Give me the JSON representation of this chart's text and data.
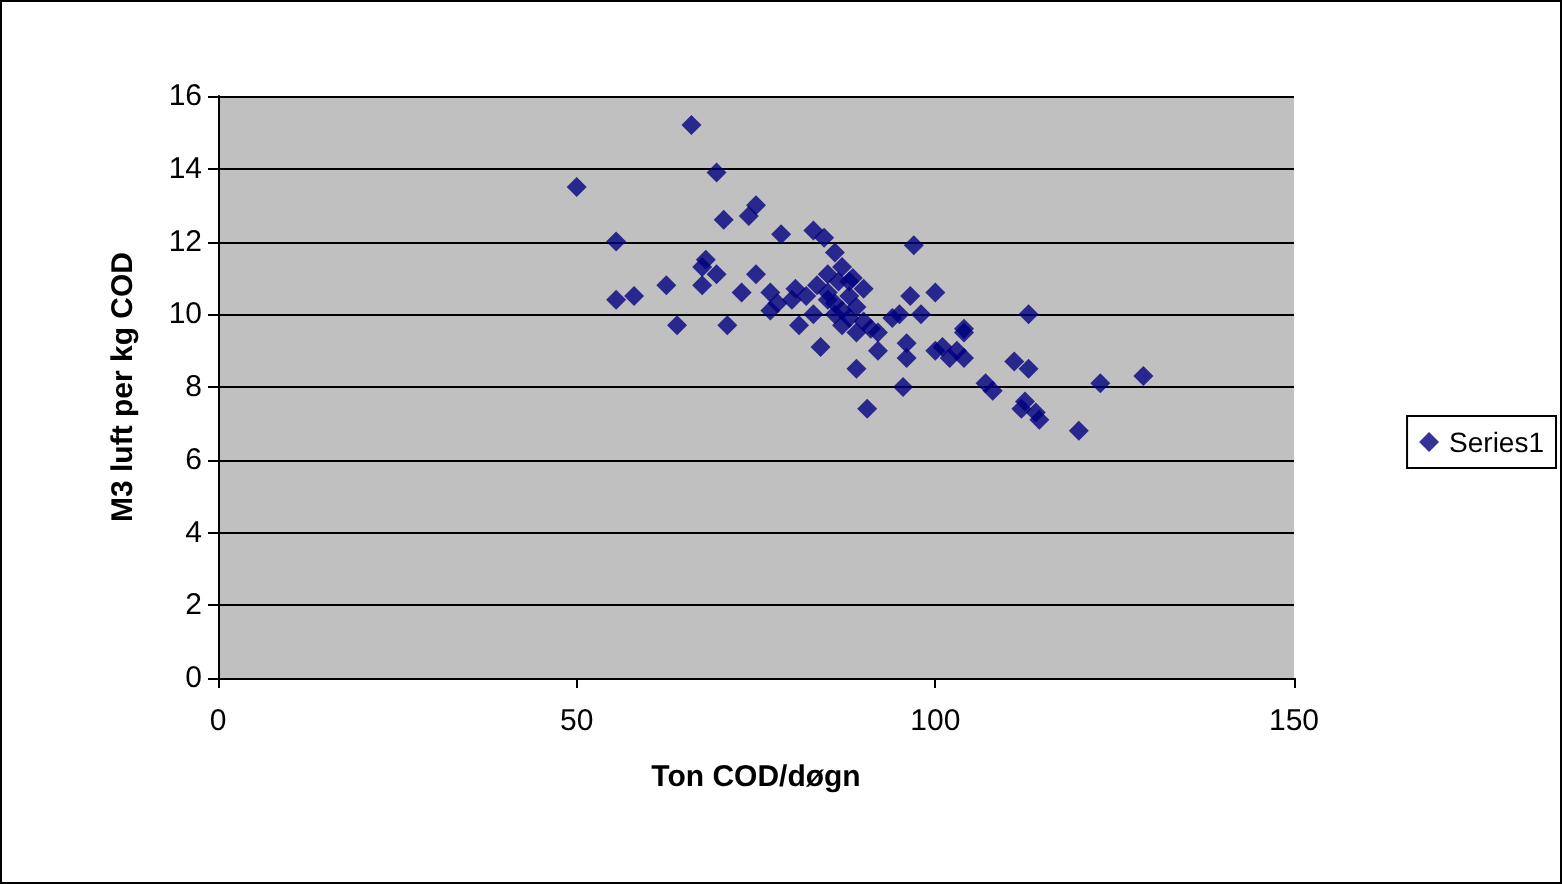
{
  "chart_data": {
    "type": "scatter",
    "xlabel": "Ton COD/døgn",
    "ylabel": "M3 luft per kg COD",
    "x": [
      50,
      66,
      69.5,
      55.5,
      55.5,
      58,
      62.5,
      64,
      67.5,
      68,
      67.5,
      69.5,
      70.5,
      71,
      74,
      75,
      75,
      73,
      77,
      77,
      78.5,
      78,
      80,
      80.5,
      81,
      82,
      83,
      83,
      84.5,
      84,
      85,
      85,
      86,
      86,
      86.5,
      87,
      87,
      87,
      88,
      88,
      88.5,
      89,
      89,
      90,
      90,
      90.5,
      91,
      92,
      92,
      94,
      95,
      95.5,
      96,
      96,
      96.5,
      97,
      98,
      100,
      100,
      101,
      102,
      103,
      104,
      104,
      104,
      107,
      108,
      111,
      112,
      112.5,
      113,
      113,
      114,
      114.5,
      120,
      123,
      129,
      86,
      85,
      88,
      83.5,
      89
    ],
    "series": [
      {
        "name": "Series1",
        "color": "#000080",
        "values": [
          13.5,
          15.2,
          13.9,
          12,
          10.4,
          10.5,
          10.8,
          9.7,
          11.3,
          11.5,
          10.8,
          11.1,
          12.6,
          9.7,
          12.7,
          13,
          11.1,
          10.6,
          10.6,
          10.1,
          12.2,
          10.3,
          10.4,
          10.7,
          9.7,
          10.5,
          10,
          12.3,
          12.1,
          9.1,
          11.1,
          10.6,
          11.7,
          10.3,
          10.9,
          11.3,
          10.1,
          9.7,
          10.9,
          10.5,
          11,
          10.2,
          8.5,
          10.7,
          9.8,
          7.4,
          9.6,
          9.5,
          9,
          9.9,
          10,
          8,
          9.2,
          8.8,
          10.5,
          11.9,
          10,
          10.6,
          9,
          9.1,
          8.8,
          9,
          9.5,
          9.6,
          8.8,
          8.1,
          7.9,
          8.7,
          7.4,
          7.6,
          8.5,
          10,
          7.3,
          7.1,
          6.8,
          8.1,
          8.3,
          10,
          10.4,
          9.9,
          10.8,
          9.5
        ]
      }
    ],
    "xlim": [
      0,
      150
    ],
    "xticks": [
      0,
      50,
      100,
      150
    ],
    "ylim": [
      0,
      16
    ],
    "yticks": [
      0,
      2,
      4,
      6,
      8,
      10,
      12,
      14,
      16
    ],
    "grid": "y",
    "legend": "right",
    "marker": "diamond"
  }
}
